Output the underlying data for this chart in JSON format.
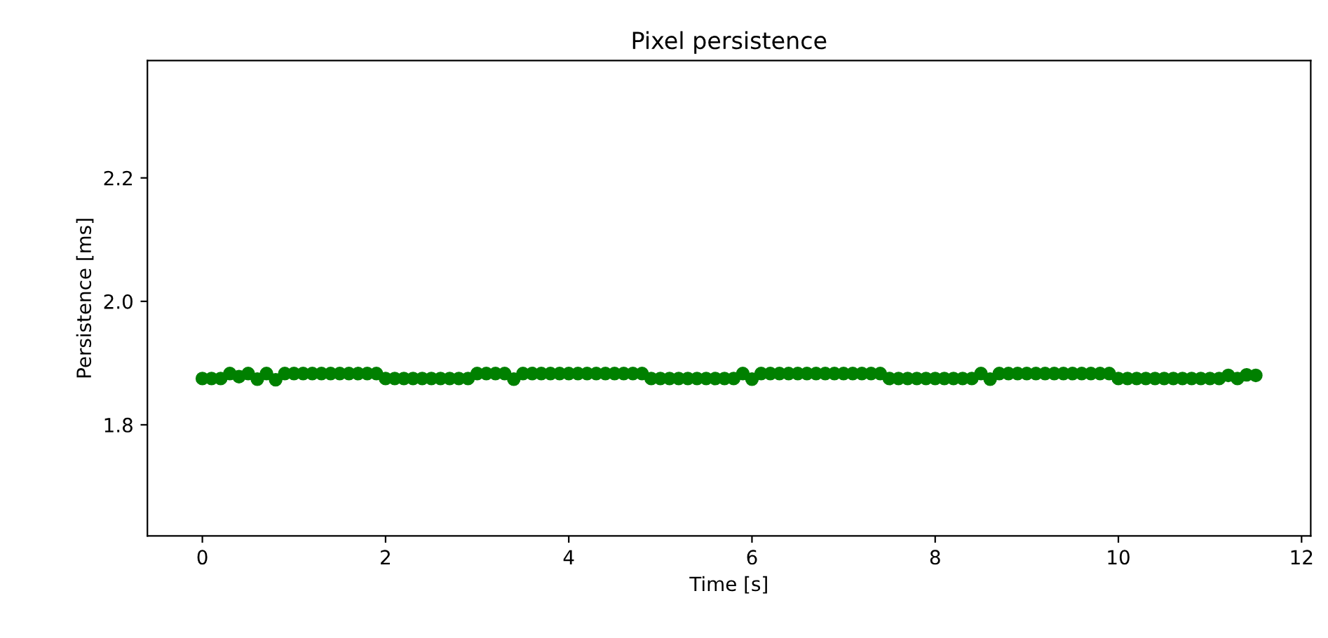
{
  "chart_data": {
    "type": "scatter",
    "title": "Pixel persistence",
    "xlabel": "Time [s]",
    "ylabel": "Persistence [ms]",
    "x": [
      0,
      0.1,
      0.2,
      0.3,
      0.4,
      0.5,
      0.6,
      0.7,
      0.8,
      0.9,
      1.0,
      1.1,
      1.2,
      1.3,
      1.4,
      1.5,
      1.6,
      1.7,
      1.8,
      1.9,
      2.0,
      2.1,
      2.2,
      2.3,
      2.4,
      2.5,
      2.6,
      2.7,
      2.8,
      2.9,
      3.0,
      3.1,
      3.2,
      3.3,
      3.4,
      3.5,
      3.6,
      3.7,
      3.8,
      3.9,
      4.0,
      4.1,
      4.2,
      4.3,
      4.4,
      4.5,
      4.6,
      4.7,
      4.8,
      4.9,
      5.0,
      5.1,
      5.2,
      5.3,
      5.4,
      5.5,
      5.6,
      5.7,
      5.8,
      5.9,
      6.0,
      6.1,
      6.2,
      6.3,
      6.4,
      6.5,
      6.6,
      6.7,
      6.8,
      6.9,
      7.0,
      7.1,
      7.2,
      7.3,
      7.4,
      7.5,
      7.6,
      7.7,
      7.8,
      7.9,
      8.0,
      8.1,
      8.2,
      8.3,
      8.4,
      8.5,
      8.6,
      8.7,
      8.8,
      8.9,
      9.0,
      9.1,
      9.2,
      9.3,
      9.4,
      9.5,
      9.6,
      9.7,
      9.8,
      9.9,
      10.0,
      10.1,
      10.2,
      10.3,
      10.4,
      10.5,
      10.6,
      10.7,
      10.8,
      10.9,
      11.0,
      11.1,
      11.2,
      11.3,
      11.4,
      11.5
    ],
    "series": [
      {
        "color": "#008000",
        "values": [
          1.875,
          1.875,
          1.875,
          1.883,
          1.878,
          1.883,
          1.874,
          1.883,
          1.873,
          1.883,
          1.883,
          1.883,
          1.883,
          1.883,
          1.883,
          1.883,
          1.883,
          1.883,
          1.883,
          1.883,
          1.875,
          1.875,
          1.875,
          1.875,
          1.875,
          1.875,
          1.875,
          1.875,
          1.875,
          1.875,
          1.883,
          1.883,
          1.883,
          1.883,
          1.874,
          1.883,
          1.883,
          1.883,
          1.883,
          1.883,
          1.883,
          1.883,
          1.883,
          1.883,
          1.883,
          1.883,
          1.883,
          1.883,
          1.883,
          1.875,
          1.875,
          1.875,
          1.875,
          1.875,
          1.875,
          1.875,
          1.875,
          1.875,
          1.875,
          1.883,
          1.874,
          1.883,
          1.883,
          1.883,
          1.883,
          1.883,
          1.883,
          1.883,
          1.883,
          1.883,
          1.883,
          1.883,
          1.883,
          1.883,
          1.883,
          1.875,
          1.875,
          1.875,
          1.875,
          1.875,
          1.875,
          1.875,
          1.875,
          1.875,
          1.875,
          1.883,
          1.874,
          1.883,
          1.883,
          1.883,
          1.883,
          1.883,
          1.883,
          1.883,
          1.883,
          1.883,
          1.883,
          1.883,
          1.883,
          1.883,
          1.875,
          1.875,
          1.875,
          1.875,
          1.875,
          1.875,
          1.875,
          1.875,
          1.875,
          1.875,
          1.875,
          1.875,
          1.88,
          1.875,
          1.881,
          1.88
        ]
      }
    ],
    "xlim": [
      -0.6,
      12.1
    ],
    "ylim": [
      1.62,
      2.39
    ],
    "xticks": [
      0,
      2,
      4,
      6,
      8,
      10,
      12
    ],
    "yticks": [
      1.8,
      {
        "value": 2.0,
        "label": "2.0"
      },
      2.2
    ],
    "marker": "circle",
    "grid": false,
    "legend": false
  }
}
